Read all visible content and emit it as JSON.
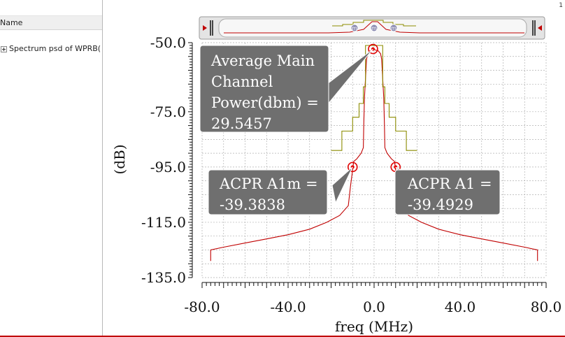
{
  "left_panel": {
    "header": "Name",
    "tree_item": "Spectrum psd of  WPRB("
  },
  "corner_number": "1",
  "colors": {
    "trace": "#c00000",
    "mask": "#8c8c00",
    "callout_bg": "#6f6f6f",
    "callout_text": "#ffffff",
    "grid": "#b0b0b0",
    "marker": "#e00000"
  },
  "scrollbar": {
    "left_arrow_icon": "left-arrow-icon",
    "right_arrow_icon": "right-arrow-icon",
    "markers": [
      "m",
      "m",
      "m"
    ]
  },
  "chart_data": {
    "type": "line",
    "xlabel": "freq (MHz)",
    "ylabel": "(dB)",
    "xlim": [
      -80,
      80
    ],
    "ylim": [
      -135,
      -50
    ],
    "x_ticks": [
      "-80.0",
      "-40.0",
      "0.0",
      "40.0",
      "80.0"
    ],
    "y_ticks": [
      "-50.0",
      "-75.0",
      "-95.0",
      "-115.0",
      "-135.0"
    ],
    "grid": true,
    "series": [
      {
        "x": [
          -76,
          -76,
          -70,
          -60,
          -50,
          -40,
          -30,
          -22,
          -16,
          -12,
          -11,
          -10,
          -9.5,
          -8,
          -6,
          -5,
          -4.8,
          -4.5,
          -4,
          -3.5,
          -3,
          -2,
          0,
          2,
          3,
          3.5,
          4,
          4.5,
          4.8,
          5,
          6,
          8,
          9.5,
          10,
          11,
          12,
          16,
          22,
          30,
          40,
          50,
          60,
          70,
          76,
          76
        ],
        "y": [
          -129,
          -125,
          -124,
          -122.5,
          -121,
          -119.5,
          -117.5,
          -115,
          -112.5,
          -109,
          -102,
          -96,
          -93,
          -92,
          -90,
          -88,
          -80,
          -70,
          -63,
          -56,
          -54,
          -53,
          -52.5,
          -53,
          -54,
          -56,
          -63,
          -70,
          -80,
          -88,
          -90,
          -92,
          -93,
          -96,
          -102,
          -109,
          -112.5,
          -115,
          -117.5,
          -119.5,
          -121,
          -122.5,
          -124,
          -125,
          -129
        ]
      },
      {
        "x": [
          -20,
          -15,
          -15,
          -10,
          -10,
          -7,
          -7,
          -5,
          -5,
          -4,
          -4,
          4,
          4,
          5,
          5,
          7,
          7,
          10,
          10,
          15,
          15,
          20
        ],
        "y": [
          -89,
          -89,
          -82,
          -82,
          -77,
          -77,
          -72,
          -72,
          -66,
          -66,
          -51,
          -51,
          -66,
          -66,
          -72,
          -72,
          -77,
          -77,
          -82,
          -82,
          -89,
          -89
        ]
      }
    ],
    "markers": [
      {
        "x": -0.5,
        "y": -52.3
      },
      {
        "x": -10,
        "y": -95
      },
      {
        "x": 10,
        "y": -95
      }
    ],
    "annotations": [
      {
        "lines": [
          "Average Main",
          "Channel",
          "Power(dbm) =",
          "29.5457"
        ]
      },
      {
        "lines": [
          "ACPR A1m =",
          "-39.3838"
        ]
      },
      {
        "lines": [
          "ACPR A1 =",
          "-39.4929"
        ]
      }
    ]
  }
}
